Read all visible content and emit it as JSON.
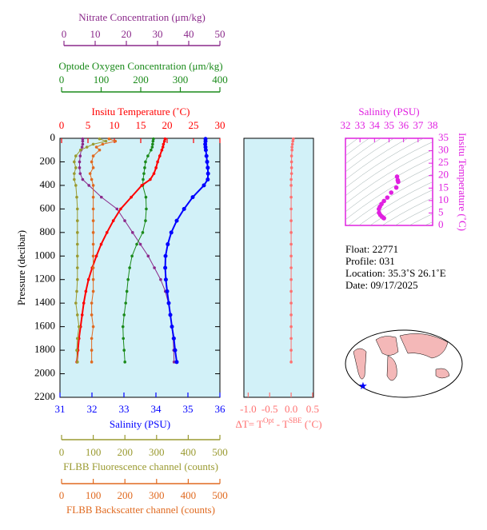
{
  "chart_data": [
    {
      "type": "profile",
      "ylabel": "Pressure (decibar)",
      "ylim": [
        0,
        2200
      ],
      "yticks": [
        0,
        200,
        400,
        600,
        800,
        1000,
        1200,
        1400,
        1600,
        1800,
        2000,
        2200
      ],
      "pressure": [
        5,
        25,
        50,
        75,
        100,
        150,
        200,
        250,
        300,
        350,
        400,
        500,
        600,
        700,
        800,
        900,
        1000,
        1100,
        1200,
        1300,
        1400,
        1500,
        1600,
        1700,
        1800,
        1900
      ],
      "background": "#d2f1f8",
      "series": [
        {
          "name": "Nitrate Concentration (μm/kg)",
          "color": "#8b2a8b",
          "xlim": [
            0,
            50
          ],
          "xticks": [
            0,
            10,
            20,
            30,
            40,
            50
          ],
          "values": [
            6,
            6,
            6,
            5.8,
            5.5,
            5.2,
            5,
            5,
            5.2,
            6,
            8,
            12,
            17,
            19.5,
            22,
            24.5,
            27,
            29,
            31,
            32.5,
            33.5,
            34.2,
            34.6,
            35,
            35.2,
            35.3
          ]
        },
        {
          "name": "Optode Oxygen Concentration (μm/kg)",
          "color": "#1a8a1a",
          "xlim": [
            0,
            400
          ],
          "xticks": [
            0,
            100,
            200,
            300,
            400
          ],
          "values": [
            232,
            231,
            230,
            229,
            226,
            218,
            212,
            210,
            208,
            206,
            205,
            213,
            214,
            212,
            205,
            190,
            178,
            172,
            168,
            165,
            162,
            158,
            155,
            156,
            158,
            160
          ]
        },
        {
          "name": "Insitu Temperature (˚C)",
          "color": "#ff0000",
          "xlim": [
            0,
            30
          ],
          "xticks": [
            0,
            5,
            10,
            15,
            20,
            25,
            30
          ],
          "values": [
            19.6,
            19.5,
            19.3,
            19.2,
            19.0,
            18.6,
            18.2,
            17.9,
            17.5,
            16.8,
            15.2,
            13.2,
            11.2,
            9.8,
            8.6,
            7.5,
            6.6,
            5.8,
            5.1,
            4.6,
            4.2,
            3.9,
            3.6,
            3.3,
            3.1,
            2.9
          ]
        },
        {
          "name": "Salinity (PSU)",
          "color": "#0000ff",
          "xlim": [
            31,
            36
          ],
          "xticks": [
            31,
            32,
            33,
            34,
            35,
            36
          ],
          "values": [
            35.55,
            35.55,
            35.54,
            35.55,
            35.56,
            35.58,
            35.6,
            35.62,
            35.63,
            35.62,
            35.5,
            35.15,
            34.88,
            34.65,
            34.48,
            34.37,
            34.3,
            34.29,
            34.31,
            34.35,
            34.4,
            34.45,
            34.5,
            34.56,
            34.6,
            34.65
          ]
        },
        {
          "name": "FLBB Fluorescence channel (counts)",
          "color": "#9a9a30",
          "xlim": [
            0,
            500
          ],
          "xticks": [
            0,
            100,
            200,
            300,
            400,
            500
          ],
          "values": [
            120,
            140,
            100,
            80,
            60,
            45,
            40,
            45,
            40,
            40,
            45,
            48,
            50,
            50,
            50,
            50,
            50,
            50,
            50,
            48,
            45,
            50,
            55,
            50,
            48,
            50
          ]
        },
        {
          "name": "FLBB Backscatter channel (counts)",
          "color": "#e06a20",
          "xlim": [
            0,
            500
          ],
          "xticks": [
            0,
            100,
            200,
            300,
            400,
            500
          ],
          "values": [
            150,
            170,
            130,
            110,
            120,
            100,
            95,
            100,
            90,
            95,
            100,
            100,
            100,
            100,
            100,
            100,
            100,
            100,
            100,
            100,
            95,
            95,
            100,
            95,
            95,
            95
          ]
        }
      ]
    },
    {
      "type": "delta",
      "xlabel": [
        "ΔT= T",
        "Opt",
        " - T",
        "SBE",
        " (˚C)"
      ],
      "color": "#ff7070",
      "background": "#d2f1f8",
      "xlim": [
        -1.1,
        0.52
      ],
      "xticks": [
        {
          "value": -1,
          "label": "-1.0"
        },
        {
          "value": -0.5,
          "label": "-0.5"
        },
        {
          "value": 0,
          "label": "0.0"
        },
        {
          "value": 0.5,
          "label": "0.5"
        }
      ],
      "ylim": [
        0,
        2200
      ],
      "pressure": [
        5,
        25,
        50,
        75,
        100,
        150,
        200,
        250,
        300,
        350,
        400,
        500,
        600,
        700,
        800,
        900,
        1000,
        1100,
        1200,
        1300,
        1400,
        1500,
        1600,
        1700,
        1800,
        1900
      ],
      "values": [
        0.05,
        0.04,
        0.03,
        0.02,
        0.02,
        0.01,
        0.01,
        0.01,
        0.01,
        0.0,
        0.0,
        0.0,
        0.0,
        0.0,
        0.0,
        0.0,
        0.0,
        0.0,
        0.0,
        0.0,
        0.0,
        0.0,
        0.0,
        0.0,
        0.0,
        0.0
      ]
    },
    {
      "type": "ts",
      "xlabel": "Salinity (PSU)",
      "ylabel": "Insitu Temperature (˚C)",
      "color": "#e020e0",
      "xlim": [
        32,
        38
      ],
      "xticks": [
        32,
        33,
        34,
        35,
        36,
        37,
        38
      ],
      "ylim": [
        0,
        35
      ],
      "yticks": [
        0,
        5,
        10,
        15,
        20,
        25,
        30,
        35
      ],
      "x": [
        35.55,
        35.6,
        35.63,
        35.5,
        35.15,
        34.88,
        34.65,
        34.48,
        34.37,
        34.3,
        34.31,
        34.4,
        34.5,
        34.6,
        34.65
      ],
      "values": [
        19.6,
        18.2,
        17.5,
        15.2,
        13.2,
        11.2,
        9.8,
        8.6,
        7.5,
        6.6,
        5.1,
        4.2,
        3.6,
        3.1,
        2.9
      ]
    }
  ],
  "info": [
    "Float:  22771",
    "Profile:  031",
    "Location:  35.3˚S  26.1˚E",
    "Date:  09/17/2025"
  ]
}
